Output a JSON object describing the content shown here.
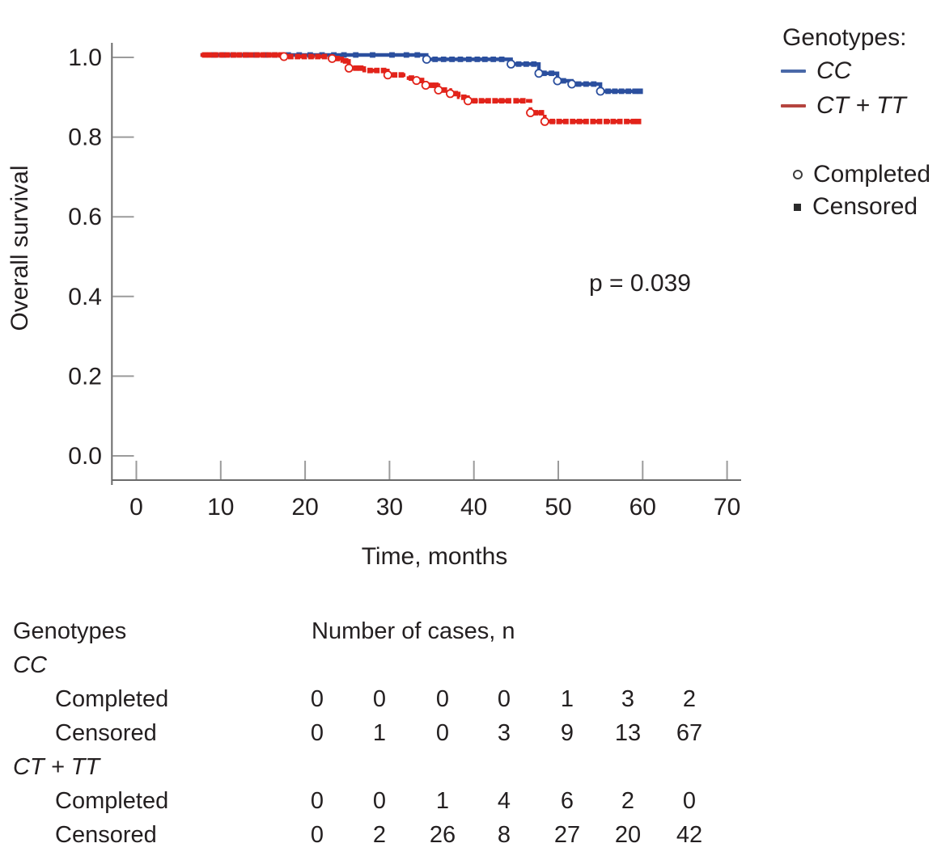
{
  "colors": {
    "cc": "#2b4f9e",
    "cttt": "#e2231a",
    "legend_cc_dash": "#4a69a8",
    "legend_cttt_dash": "#b5443f",
    "text": "#231f20",
    "axis": "#6b6b6b",
    "tick": "#9b9b9b"
  },
  "chart_data": {
    "type": "line",
    "subtype": "kaplan_meier_step",
    "title": "",
    "xlabel": "Time, months",
    "ylabel": "Overall survival",
    "xlim": [
      0,
      70
    ],
    "ylim": [
      0,
      1.0
    ],
    "grid": false,
    "legend_position": "right",
    "xtick_values": [
      0,
      10,
      20,
      30,
      40,
      50,
      60,
      70
    ],
    "xtick_labels": [
      "0",
      "10",
      "20",
      "30",
      "40",
      "50",
      "60",
      "70"
    ],
    "ytick_values": [
      1.0,
      0.8,
      0.6,
      0.4,
      0.2,
      0.0
    ],
    "ytick_labels": [
      "1.0",
      "0.8",
      "0.6",
      "0.4",
      "0.2",
      "0.0"
    ],
    "annotation": {
      "text": "p = 0.039"
    },
    "axis_color": "#6b6b6b",
    "tick_color": "#9b9b9b",
    "text_color": "#231f20",
    "series": [
      {
        "name": "CC",
        "color": "#2b4f9e",
        "line_style": "solid",
        "dash": "",
        "points": [
          [
            7.6,
            1.0
          ],
          [
            34.4,
            1.0
          ],
          [
            34.4,
            0.989
          ],
          [
            44.4,
            0.989
          ],
          [
            44.4,
            0.977
          ],
          [
            47.7,
            0.977
          ],
          [
            47.7,
            0.954
          ],
          [
            49.9,
            0.954
          ],
          [
            49.9,
            0.935
          ],
          [
            51.6,
            0.935
          ],
          [
            51.6,
            0.927
          ],
          [
            55.0,
            0.927
          ],
          [
            55.0,
            0.909
          ],
          [
            59.8,
            0.909
          ]
        ],
        "censored_times": [
          9.2,
          10.3,
          11.5,
          13.0,
          14.2,
          15.3,
          16.4,
          18.0,
          19.3,
          20.6,
          22.0,
          23.4,
          24.6,
          26.0,
          28.0,
          30.3,
          32.0,
          33.3,
          35.4,
          36.4,
          37.4,
          38.4,
          39.4,
          40.4,
          41.3,
          42.3,
          43.3,
          45.3,
          46.2,
          47.1,
          48.3,
          49.2,
          50.6,
          52.4,
          53.3,
          54.2,
          55.9,
          56.7,
          57.5,
          58.3,
          59.1,
          59.7
        ],
        "completed_times": [
          34.4,
          44.4,
          47.7,
          49.9,
          51.6,
          55.0
        ]
      },
      {
        "name": "CT + TT",
        "color": "#e2231a",
        "line_style": "dashed",
        "dash": "8 5.5",
        "points": [
          [
            7.6,
            1.0
          ],
          [
            17.5,
            1.0
          ],
          [
            17.5,
            0.996
          ],
          [
            23.2,
            0.996
          ],
          [
            23.2,
            0.991
          ],
          [
            24.4,
            0.991
          ],
          [
            24.4,
            0.985
          ],
          [
            25.2,
            0.985
          ],
          [
            25.2,
            0.967
          ],
          [
            27.0,
            0.967
          ],
          [
            27.0,
            0.961
          ],
          [
            29.8,
            0.961
          ],
          [
            29.8,
            0.95
          ],
          [
            32.0,
            0.95
          ],
          [
            32.0,
            0.942
          ],
          [
            33.2,
            0.942
          ],
          [
            33.2,
            0.936
          ],
          [
            34.3,
            0.936
          ],
          [
            34.3,
            0.924
          ],
          [
            35.8,
            0.924
          ],
          [
            35.8,
            0.912
          ],
          [
            37.2,
            0.912
          ],
          [
            37.2,
            0.903
          ],
          [
            38.2,
            0.903
          ],
          [
            38.2,
            0.894
          ],
          [
            39.3,
            0.894
          ],
          [
            39.3,
            0.885
          ],
          [
            46.7,
            0.885
          ],
          [
            46.7,
            0.855
          ],
          [
            48.4,
            0.855
          ],
          [
            48.4,
            0.833
          ],
          [
            59.6,
            0.833
          ]
        ],
        "censored_times": [
          8.1,
          8.7,
          9.4,
          10.1,
          10.8,
          11.5,
          12.2,
          12.9,
          13.6,
          14.3,
          15.0,
          15.7,
          16.4,
          17.1,
          18.3,
          19.1,
          19.9,
          20.7,
          21.5,
          22.3,
          23.8,
          24.8,
          26.0,
          26.6,
          27.7,
          28.5,
          29.3,
          30.6,
          31.4,
          32.6,
          33.8,
          35.0,
          35.5,
          36.5,
          37.8,
          38.8,
          40.1,
          40.9,
          41.7,
          42.5,
          43.3,
          44.1,
          45.0,
          45.8,
          47.3,
          48.0,
          49.3,
          50.1,
          50.9,
          51.7,
          52.5,
          53.3,
          54.1,
          54.9,
          55.7,
          56.5,
          57.3,
          58.1,
          58.9,
          59.5
        ],
        "completed_times": [
          17.5,
          23.2,
          25.2,
          29.8,
          33.2,
          34.3,
          35.8,
          37.2,
          39.3,
          46.7,
          48.4
        ]
      }
    ]
  },
  "legend": {
    "title": "Genotypes:",
    "items": [
      {
        "label": "CC"
      },
      {
        "label": "CT + TT"
      }
    ],
    "marker_items": [
      {
        "label": "Completed",
        "marker": "open-circle"
      },
      {
        "label": "Censored",
        "marker": "filled-square"
      }
    ]
  },
  "table": {
    "header_left": "Genotypes",
    "header_right": "Number of cases, n",
    "groups": [
      {
        "name": "CC",
        "rows": [
          {
            "label": "Completed",
            "values": [
              0,
              0,
              0,
              0,
              1,
              3,
              2
            ]
          },
          {
            "label": "Censored",
            "values": [
              0,
              1,
              0,
              3,
              9,
              13,
              67
            ]
          }
        ]
      },
      {
        "name": "CT + TT",
        "rows": [
          {
            "label": "Completed",
            "values": [
              0,
              0,
              1,
              4,
              6,
              2,
              0
            ]
          },
          {
            "label": "Censored",
            "values": [
              0,
              2,
              26,
              8,
              27,
              20,
              42
            ]
          }
        ]
      }
    ]
  }
}
